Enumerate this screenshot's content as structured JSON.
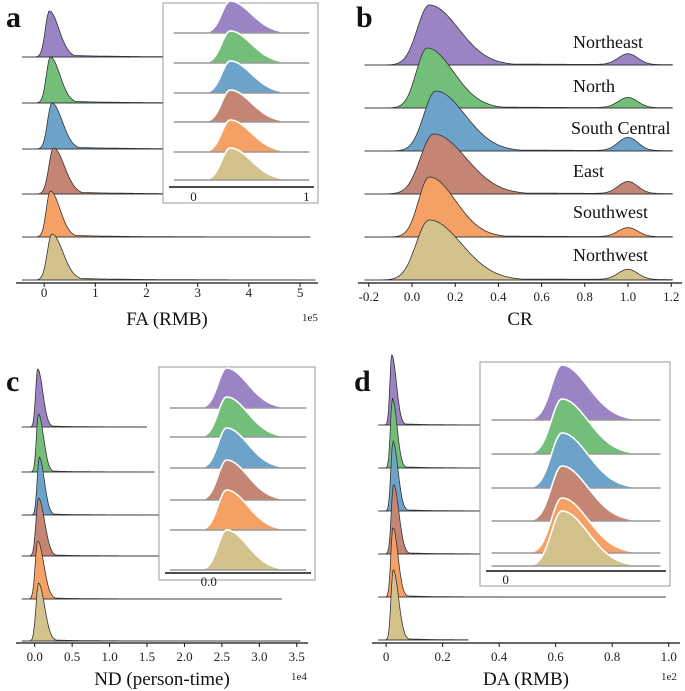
{
  "colors": {
    "Northeast": "#9b84c4",
    "North": "#73be78",
    "South Central": "#6da3c9",
    "East": "#c48575",
    "Southwest": "#f5a064",
    "Northwest": "#d3c28c",
    "outline": "#333333"
  },
  "chart_data": [
    {
      "id": "a",
      "type": "ridgeline",
      "panel_label": "a",
      "xlabel": "FA (RMB)",
      "exponent": "1e5",
      "xlim": [
        -0.55,
        5.35
      ],
      "xticks": [
        0,
        1,
        2,
        3,
        4,
        5
      ],
      "tick_labels": [
        "0",
        "1",
        "2",
        "3",
        "4",
        "5"
      ],
      "series": [
        {
          "name": "Northeast",
          "peak": 0.1,
          "width": 0.14,
          "tail": 0.6,
          "tail_end": 5.3
        },
        {
          "name": "North",
          "peak": 0.12,
          "width": 0.14,
          "tail": 0.6,
          "tail_end": 5.25
        },
        {
          "name": "South Central",
          "peak": 0.15,
          "width": 0.15,
          "tail": 0.6,
          "tail_end": 5.2
        },
        {
          "name": "East",
          "peak": 0.18,
          "width": 0.16,
          "tail": 0.6,
          "tail_end": 5.25
        },
        {
          "name": "Southwest",
          "peak": 0.12,
          "width": 0.14,
          "tail": 0.6,
          "tail_end": 5.2
        },
        {
          "name": "Northwest",
          "peak": 0.15,
          "width": 0.16,
          "tail": 0.6,
          "tail_end": 5.3
        }
      ],
      "inset": {
        "xlim": [
          -0.2,
          1.05
        ],
        "xticks": [
          0,
          1
        ],
        "tick_labels": [
          "0",
          "1"
        ]
      }
    },
    {
      "id": "b",
      "type": "ridgeline",
      "panel_label": "b",
      "xlabel": "CR",
      "exponent": "",
      "xlim": [
        -0.25,
        1.25
      ],
      "xticks": [
        -0.2,
        0.0,
        0.2,
        0.4,
        0.6,
        0.8,
        1.0,
        1.2
      ],
      "tick_labels": [
        "-0.2",
        "0.0",
        "0.2",
        "0.4",
        "0.6",
        "0.8",
        "1.0",
        "1.2"
      ],
      "series": [
        {
          "name": "Northeast",
          "peak": 0.08,
          "width": 0.1,
          "tail": 0.3,
          "bump": 1.0,
          "bump_height": 0.18
        },
        {
          "name": "North",
          "peak": 0.07,
          "width": 0.09,
          "tail": 0.28,
          "bump": 1.0,
          "bump_height": 0.17
        },
        {
          "name": "South Central",
          "peak": 0.11,
          "width": 0.1,
          "tail": 0.3,
          "bump": 1.0,
          "bump_height": 0.22
        },
        {
          "name": "East",
          "peak": 0.1,
          "width": 0.11,
          "tail": 0.3,
          "bump": 1.0,
          "bump_height": 0.2
        },
        {
          "name": "Southwest",
          "peak": 0.08,
          "width": 0.09,
          "tail": 0.28,
          "bump": 1.0,
          "bump_height": 0.15
        },
        {
          "name": "Northwest",
          "peak": 0.08,
          "width": 0.11,
          "tail": 0.32,
          "bump": 1.0,
          "bump_height": 0.17
        }
      ],
      "region_labels": [
        "Northeast",
        "North",
        "South Central",
        "East",
        "Southwest",
        "Northwest"
      ]
    },
    {
      "id": "c",
      "type": "ridgeline",
      "panel_label": "c",
      "xlabel": "ND (person-time)",
      "exponent": "1e4",
      "xlim": [
        -0.25,
        3.65
      ],
      "xticks": [
        0.0,
        0.5,
        1.0,
        1.5,
        2.0,
        2.5,
        3.0,
        3.5
      ],
      "tick_labels": [
        "0.0",
        "0.5",
        "1.0",
        "1.5",
        "2.0",
        "2.5",
        "3.0",
        "3.5"
      ],
      "series": [
        {
          "name": "Northeast",
          "peak": 0.04,
          "width": 0.05,
          "tail": 0.3,
          "tail_end": 1.5
        },
        {
          "name": "North",
          "peak": 0.05,
          "width": 0.05,
          "tail": 0.3,
          "tail_end": 1.6
        },
        {
          "name": "South Central",
          "peak": 0.06,
          "width": 0.05,
          "tail": 0.3,
          "tail_end": 2.7
        },
        {
          "name": "East",
          "peak": 0.05,
          "width": 0.06,
          "tail": 0.3,
          "tail_end": 3.4
        },
        {
          "name": "Southwest",
          "peak": 0.04,
          "width": 0.06,
          "tail": 0.3,
          "tail_end": 3.3
        },
        {
          "name": "Northwest",
          "peak": 0.05,
          "width": 0.06,
          "tail": 0.3,
          "tail_end": 3.55
        }
      ],
      "inset": {
        "xlim": [
          -0.05,
          0.12
        ],
        "xticks": [
          0.0
        ],
        "tick_labels": [
          "0.0"
        ]
      }
    },
    {
      "id": "d",
      "type": "ridgeline",
      "panel_label": "d",
      "xlabel": "DA (RMB)",
      "exponent": "1e2",
      "xlim": [
        -0.05,
        1.04
      ],
      "xticks": [
        0.0,
        0.2,
        0.4,
        0.6,
        0.8,
        1.0
      ],
      "tick_labels": [
        "0",
        "0.2",
        "0.4",
        "0.6",
        "0.8",
        "1.0"
      ],
      "series": [
        {
          "name": "Northeast",
          "peak": 0.02,
          "width": 0.012,
          "tail": 0.3,
          "tail_end": 0.34
        },
        {
          "name": "North",
          "peak": 0.022,
          "width": 0.012,
          "tail": 0.3,
          "tail_end": 0.99
        },
        {
          "name": "South Central",
          "peak": 0.024,
          "width": 0.013,
          "tail": 0.3,
          "tail_end": 0.95
        },
        {
          "name": "East",
          "peak": 0.026,
          "width": 0.014,
          "tail": 0.3,
          "tail_end": 0.8
        },
        {
          "name": "Southwest",
          "peak": 0.024,
          "width": 0.013,
          "tail": 0.3,
          "tail_end": 0.99
        },
        {
          "name": "Northwest",
          "peak": 0.025,
          "width": 0.014,
          "tail": 0.3,
          "tail_end": 0.29
        }
      ],
      "inset": {
        "xlim": [
          -0.01,
          0.09
        ],
        "xticks": [
          0
        ],
        "tick_labels": [
          "0"
        ]
      }
    }
  ]
}
